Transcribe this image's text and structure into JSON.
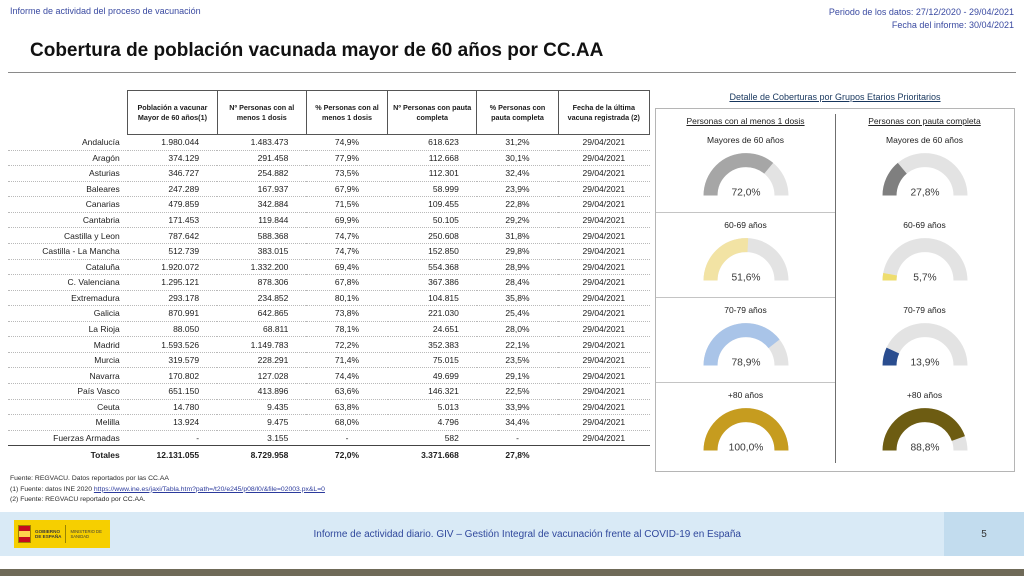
{
  "topbar": {
    "left": "Informe de actividad del proceso de vacunación",
    "period": "Periodo de los datos: 27/12/2020 - 29/04/2021",
    "report_date": "Fecha del informe: 30/04/2021"
  },
  "title": "Cobertura de población vacunada mayor de 60 años por CC.AA",
  "table": {
    "columns": [
      "",
      "Población a vacunar Mayor de 60 años(1)",
      "Nº Personas con al menos 1 dosis",
      "% Personas con al menos 1 dosis",
      "Nº Personas con pauta completa",
      "% Personas con pauta completa",
      "Fecha de la última vacuna registrada (2)"
    ],
    "rows": [
      [
        "Andalucía",
        "1.980.044",
        "1.483.473",
        "74,9%",
        "618.623",
        "31,2%",
        "29/04/2021"
      ],
      [
        "Aragón",
        "374.129",
        "291.458",
        "77,9%",
        "112.668",
        "30,1%",
        "29/04/2021"
      ],
      [
        "Asturias",
        "346.727",
        "254.882",
        "73,5%",
        "112.301",
        "32,4%",
        "29/04/2021"
      ],
      [
        "Baleares",
        "247.289",
        "167.937",
        "67,9%",
        "58.999",
        "23,9%",
        "29/04/2021"
      ],
      [
        "Canarias",
        "479.859",
        "342.884",
        "71,5%",
        "109.455",
        "22,8%",
        "29/04/2021"
      ],
      [
        "Cantabria",
        "171.453",
        "119.844",
        "69,9%",
        "50.105",
        "29,2%",
        "29/04/2021"
      ],
      [
        "Castilla y Leon",
        "787.642",
        "588.368",
        "74,7%",
        "250.608",
        "31,8%",
        "29/04/2021"
      ],
      [
        "Castilla - La Mancha",
        "512.739",
        "383.015",
        "74,7%",
        "152.850",
        "29,8%",
        "29/04/2021"
      ],
      [
        "Cataluña",
        "1.920.072",
        "1.332.200",
        "69,4%",
        "554.368",
        "28,9%",
        "29/04/2021"
      ],
      [
        "C. Valenciana",
        "1.295.121",
        "878.306",
        "67,8%",
        "367.386",
        "28,4%",
        "29/04/2021"
      ],
      [
        "Extremadura",
        "293.178",
        "234.852",
        "80,1%",
        "104.815",
        "35,8%",
        "29/04/2021"
      ],
      [
        "Galicia",
        "870.991",
        "642.865",
        "73,8%",
        "221.030",
        "25,4%",
        "29/04/2021"
      ],
      [
        "La Rioja",
        "88.050",
        "68.811",
        "78,1%",
        "24.651",
        "28,0%",
        "29/04/2021"
      ],
      [
        "Madrid",
        "1.593.526",
        "1.149.783",
        "72,2%",
        "352.383",
        "22,1%",
        "29/04/2021"
      ],
      [
        "Murcia",
        "319.579",
        "228.291",
        "71,4%",
        "75.015",
        "23,5%",
        "29/04/2021"
      ],
      [
        "Navarra",
        "170.802",
        "127.028",
        "74,4%",
        "49.699",
        "29,1%",
        "29/04/2021"
      ],
      [
        "País Vasco",
        "651.150",
        "413.896",
        "63,6%",
        "146.321",
        "22,5%",
        "29/04/2021"
      ],
      [
        "Ceuta",
        "14.780",
        "9.435",
        "63,8%",
        "5.013",
        "33,9%",
        "29/04/2021"
      ],
      [
        "Melilla",
        "13.924",
        "9.475",
        "68,0%",
        "4.796",
        "34,4%",
        "29/04/2021"
      ],
      [
        "Fuerzas Armadas",
        "-",
        "3.155",
        "-",
        "582",
        "-",
        "29/04/2021"
      ]
    ],
    "totals": [
      "Totales",
      "12.131.055",
      "8.729.958",
      "72,0%",
      "3.371.668",
      "27,8%",
      ""
    ]
  },
  "gauges": {
    "title": "Detalle de Coberturas por Grupos Etarios Prioritarios",
    "col1_header": "Personas con al menos 1 dosis",
    "col2_header": "Personas con pauta completa",
    "track_color": "#e3e3e3",
    "groups": [
      {
        "label": "Mayores de 60 años",
        "dose1_pct": 72.0,
        "dose1_label": "72,0%",
        "dose1_color": "#a6a6a6",
        "full_pct": 27.8,
        "full_label": "27,8%",
        "full_color": "#7f7f7f"
      },
      {
        "label": "60-69 años",
        "dose1_pct": 51.6,
        "dose1_label": "51,6%",
        "dose1_color": "#f2e3a4",
        "full_pct": 5.7,
        "full_label": "5,7%",
        "full_color": "#eedd6e"
      },
      {
        "label": "70-79 años",
        "dose1_pct": 78.9,
        "dose1_label": "78,9%",
        "dose1_color": "#a9c4e8",
        "full_pct": 13.9,
        "full_label": "13,9%",
        "full_color": "#2a4d8f"
      },
      {
        "label": "+80 años",
        "dose1_pct": 100.0,
        "dose1_label": "100,0%",
        "dose1_color": "#c69c1f",
        "full_pct": 88.8,
        "full_label": "88,8%",
        "full_color": "#6d5c12"
      }
    ]
  },
  "chart_data": {
    "type": "gauge",
    "categories": [
      "Mayores de 60 años",
      "60-69 años",
      "70-79 años",
      "+80 años"
    ],
    "series": [
      {
        "name": "Personas con al menos 1 dosis",
        "values": [
          72.0,
          51.6,
          78.9,
          100.0
        ]
      },
      {
        "name": "Personas con pauta completa",
        "values": [
          27.8,
          5.7,
          13.9,
          88.8
        ]
      }
    ],
    "title": "Detalle de Coberturas por Grupos Etarios Prioritarios",
    "unit": "%"
  },
  "footnotes": {
    "line1": "Fuente: REGVACU. Datos reportados por las CC.AA",
    "line2_prefix": "(1) Fuente: datos INE 2020 ",
    "line2_url": "https://www.ine.es/jaxi/Tabla.htm?path=/t20/e245/p08/l0/&file=02003.px&L=0",
    "line3": "(2) Fuente: REGVACU reportado por CC.AA."
  },
  "footer": {
    "logo_line1": "GOBIERNO",
    "logo_line2": "DE ESPAÑA",
    "ministry": "MINISTERIO DE SANIDAD",
    "text": "Informe de actividad diario. GIV – Gestión Integral de vacunación frente al COVID-19 en España",
    "page_number": "5"
  }
}
